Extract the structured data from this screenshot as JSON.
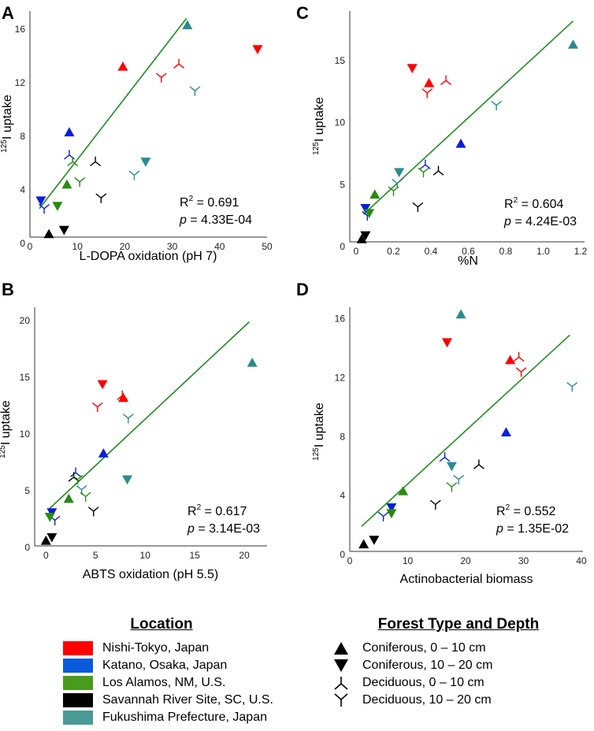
{
  "colors": {
    "nishi": "#ff0000",
    "katano": "#0a1edc",
    "losalamos": "#2a8a10",
    "savannah": "#000000",
    "fukushima": "#2a8c8c",
    "fit": "#1e8c1e"
  },
  "chart_data": [
    {
      "panel": "A",
      "type": "scatter",
      "xlabel": "L-DOPA oxidation (pH 7)",
      "ylabel_sup": "125",
      "ylabel": "I uptake",
      "xlim": [
        0,
        50
      ],
      "ylim": [
        0,
        17
      ],
      "xticks": [
        "0",
        "10",
        "20",
        "30",
        "40",
        "50"
      ],
      "yticks": [
        "0",
        "4",
        "8",
        "12",
        "16"
      ],
      "stats": {
        "r2_label": "R",
        "r2_sup": "2",
        "r2_value": " = 0.691",
        "p_label": "p",
        "p_value": " = 4.33E-04"
      },
      "fit": {
        "x": [
          2,
          33
        ],
        "y": [
          2.6,
          16.8
        ]
      },
      "points": [
        {
          "x": 33.2,
          "y": 16.3,
          "loc": "fukushima",
          "sym": "con0"
        },
        {
          "x": 48.0,
          "y": 14.5,
          "loc": "nishi",
          "sym": "con1"
        },
        {
          "x": 19.6,
          "y": 13.2,
          "loc": "nishi",
          "sym": "con0"
        },
        {
          "x": 31.4,
          "y": 13.4,
          "loc": "nishi",
          "sym": "dec0"
        },
        {
          "x": 27.7,
          "y": 12.4,
          "loc": "nishi",
          "sym": "dec1"
        },
        {
          "x": 34.8,
          "y": 11.4,
          "loc": "fukushima",
          "sym": "dec1"
        },
        {
          "x": 8.3,
          "y": 8.3,
          "loc": "katano",
          "sym": "con0"
        },
        {
          "x": 8.3,
          "y": 6.6,
          "loc": "katano",
          "sym": "dec0"
        },
        {
          "x": 9.0,
          "y": 6.1,
          "loc": "losalamos",
          "sym": "dec0"
        },
        {
          "x": 13.8,
          "y": 6.1,
          "loc": "savannah",
          "sym": "dec0"
        },
        {
          "x": 24.4,
          "y": 6.1,
          "loc": "fukushima",
          "sym": "con1"
        },
        {
          "x": 22.0,
          "y": 5.1,
          "loc": "fukushima",
          "sym": "dec1"
        },
        {
          "x": 10.5,
          "y": 4.6,
          "loc": "losalamos",
          "sym": "dec1"
        },
        {
          "x": 7.8,
          "y": 4.4,
          "loc": "losalamos",
          "sym": "con0"
        },
        {
          "x": 15.0,
          "y": 3.4,
          "loc": "savannah",
          "sym": "dec1"
        },
        {
          "x": 2.3,
          "y": 3.2,
          "loc": "katano",
          "sym": "con1"
        },
        {
          "x": 5.8,
          "y": 2.8,
          "loc": "losalamos",
          "sym": "con1"
        },
        {
          "x": 3.0,
          "y": 2.6,
          "loc": "katano",
          "sym": "dec1"
        },
        {
          "x": 7.2,
          "y": 1.0,
          "loc": "savannah",
          "sym": "con1"
        },
        {
          "x": 4.0,
          "y": 0.7,
          "loc": "savannah",
          "sym": "con0"
        }
      ]
    },
    {
      "panel": "C",
      "type": "scatter",
      "xlabel": "%N",
      "ylabel_sup": "125",
      "ylabel": "I uptake",
      "xlim": [
        0,
        1.2
      ],
      "ylim": [
        0,
        18.5
      ],
      "xticks": [
        "0",
        "0.2",
        "0.4",
        "0.6",
        "0.8",
        "1.0",
        "1.2"
      ],
      "yticks": [
        "0",
        "5",
        "10",
        "15"
      ],
      "stats": {
        "r2_label": "R",
        "r2_sup": "2",
        "r2_value": " = 0.604",
        "p_label": "p",
        "p_value": " = 4.24E-03"
      },
      "fit": {
        "x": [
          0.04,
          1.16
        ],
        "y": [
          2.6,
          18.2
        ]
      },
      "points": [
        {
          "x": 1.16,
          "y": 16.3,
          "loc": "fukushima",
          "sym": "con0"
        },
        {
          "x": 0.3,
          "y": 14.4,
          "loc": "nishi",
          "sym": "con1"
        },
        {
          "x": 0.39,
          "y": 13.2,
          "loc": "nishi",
          "sym": "con0"
        },
        {
          "x": 0.48,
          "y": 13.4,
          "loc": "nishi",
          "sym": "dec0"
        },
        {
          "x": 0.38,
          "y": 12.4,
          "loc": "nishi",
          "sym": "dec1"
        },
        {
          "x": 0.75,
          "y": 11.4,
          "loc": "fukushima",
          "sym": "dec1"
        },
        {
          "x": 0.56,
          "y": 8.3,
          "loc": "katano",
          "sym": "con0"
        },
        {
          "x": 0.37,
          "y": 6.6,
          "loc": "katano",
          "sym": "dec0"
        },
        {
          "x": 0.44,
          "y": 6.1,
          "loc": "savannah",
          "sym": "dec0"
        },
        {
          "x": 0.36,
          "y": 6.0,
          "loc": "losalamos",
          "sym": "dec1"
        },
        {
          "x": 0.23,
          "y": 6.0,
          "loc": "fukushima",
          "sym": "con1"
        },
        {
          "x": 0.22,
          "y": 5.1,
          "loc": "fukushima",
          "sym": "dec1"
        },
        {
          "x": 0.2,
          "y": 4.5,
          "loc": "losalamos",
          "sym": "dec1"
        },
        {
          "x": 0.1,
          "y": 4.2,
          "loc": "losalamos",
          "sym": "con0"
        },
        {
          "x": 0.33,
          "y": 3.2,
          "loc": "savannah",
          "sym": "dec1"
        },
        {
          "x": 0.05,
          "y": 3.1,
          "loc": "katano",
          "sym": "con1"
        },
        {
          "x": 0.06,
          "y": 2.5,
          "loc": "katano",
          "sym": "dec1"
        },
        {
          "x": 0.07,
          "y": 2.7,
          "loc": "losalamos",
          "sym": "con1"
        },
        {
          "x": 0.05,
          "y": 0.9,
          "loc": "savannah",
          "sym": "con1"
        },
        {
          "x": 0.03,
          "y": 0.6,
          "loc": "savannah",
          "sym": "con0"
        }
      ]
    },
    {
      "panel": "B",
      "type": "scatter",
      "xlabel": "ABTS oxidation (pH 5.5)",
      "ylabel_sup": "125",
      "ylabel": "I uptake",
      "xlim": [
        -0.5,
        21.5
      ],
      "ylim": [
        0,
        20.5
      ],
      "xticks": [
        "0",
        "5",
        "10",
        "15",
        "20"
      ],
      "yticks": [
        "0",
        "5",
        "10",
        "15",
        "20"
      ],
      "stats": {
        "r2_label": "R",
        "r2_sup": "2",
        "r2_value": " = 0.617",
        "p_label": "p",
        "p_value": " = 3.14E-03"
      },
      "fit": {
        "x": [
          0.2,
          20.5
        ],
        "y": [
          3.3,
          19.9
        ]
      },
      "points": [
        {
          "x": 20.8,
          "y": 16.3,
          "loc": "fukushima",
          "sym": "con0"
        },
        {
          "x": 5.7,
          "y": 14.4,
          "loc": "nishi",
          "sym": "con1"
        },
        {
          "x": 7.8,
          "y": 13.2,
          "loc": "nishi",
          "sym": "con0"
        },
        {
          "x": 7.7,
          "y": 13.4,
          "loc": "nishi",
          "sym": "dec0"
        },
        {
          "x": 5.2,
          "y": 12.4,
          "loc": "nishi",
          "sym": "dec1"
        },
        {
          "x": 8.3,
          "y": 11.4,
          "loc": "fukushima",
          "sym": "dec1"
        },
        {
          "x": 5.8,
          "y": 8.3,
          "loc": "katano",
          "sym": "con0"
        },
        {
          "x": 3.0,
          "y": 6.6,
          "loc": "katano",
          "sym": "dec0"
        },
        {
          "x": 2.8,
          "y": 6.2,
          "loc": "savannah",
          "sym": "dec0"
        },
        {
          "x": 3.2,
          "y": 6.0,
          "loc": "losalamos",
          "sym": "dec1"
        },
        {
          "x": 8.2,
          "y": 6.0,
          "loc": "fukushima",
          "sym": "con1"
        },
        {
          "x": 3.6,
          "y": 5.1,
          "loc": "fukushima",
          "sym": "dec1"
        },
        {
          "x": 4.0,
          "y": 4.5,
          "loc": "losalamos",
          "sym": "dec1"
        },
        {
          "x": 2.3,
          "y": 4.3,
          "loc": "losalamos",
          "sym": "con0"
        },
        {
          "x": 4.8,
          "y": 3.2,
          "loc": "savannah",
          "sym": "dec1"
        },
        {
          "x": 0.6,
          "y": 3.1,
          "loc": "katano",
          "sym": "con1"
        },
        {
          "x": 0.9,
          "y": 2.4,
          "loc": "katano",
          "sym": "dec1"
        },
        {
          "x": 0.4,
          "y": 2.7,
          "loc": "losalamos",
          "sym": "con1"
        },
        {
          "x": 0.6,
          "y": 0.9,
          "loc": "savannah",
          "sym": "con1"
        },
        {
          "x": 0.0,
          "y": 0.6,
          "loc": "savannah",
          "sym": "con0"
        }
      ]
    },
    {
      "panel": "D",
      "type": "scatter",
      "xlabel": "Actinobacterial biomass",
      "ylabel_sup": "125",
      "ylabel": "I uptake",
      "xlim": [
        0,
        40
      ],
      "ylim": [
        0,
        17
      ],
      "xticks": [
        "0",
        "10",
        "20",
        "30",
        "40"
      ],
      "yticks": [
        "0",
        "4",
        "8",
        "12",
        "16"
      ],
      "stats": {
        "r2_label": "R",
        "r2_sup": "2",
        "r2_value": " = 0.552",
        "p_label": "p",
        "p_value": " = 1.35E-02"
      },
      "fit": {
        "x": [
          2,
          38
        ],
        "y": [
          1.9,
          14.9
        ]
      },
      "points": [
        {
          "x": 19.2,
          "y": 16.3,
          "loc": "fukushima",
          "sym": "con0"
        },
        {
          "x": 16.8,
          "y": 14.4,
          "loc": "nishi",
          "sym": "con1"
        },
        {
          "x": 27.7,
          "y": 13.2,
          "loc": "nishi",
          "sym": "con0"
        },
        {
          "x": 29.2,
          "y": 13.4,
          "loc": "nishi",
          "sym": "dec0"
        },
        {
          "x": 29.6,
          "y": 12.4,
          "loc": "nishi",
          "sym": "dec1"
        },
        {
          "x": 38.4,
          "y": 11.4,
          "loc": "fukushima",
          "sym": "dec1"
        },
        {
          "x": 27.0,
          "y": 8.3,
          "loc": "katano",
          "sym": "con0"
        },
        {
          "x": 16.4,
          "y": 6.6,
          "loc": "katano",
          "sym": "dec0"
        },
        {
          "x": 22.3,
          "y": 6.1,
          "loc": "savannah",
          "sym": "dec0"
        },
        {
          "x": 17.6,
          "y": 6.0,
          "loc": "fukushima",
          "sym": "con1"
        },
        {
          "x": 18.8,
          "y": 5.1,
          "loc": "fukushima",
          "sym": "dec1"
        },
        {
          "x": 17.6,
          "y": 4.6,
          "loc": "losalamos",
          "sym": "dec1"
        },
        {
          "x": 9.2,
          "y": 4.3,
          "loc": "losalamos",
          "sym": "con0"
        },
        {
          "x": 14.8,
          "y": 3.4,
          "loc": "savannah",
          "sym": "dec1"
        },
        {
          "x": 7.2,
          "y": 3.2,
          "loc": "katano",
          "sym": "con1"
        },
        {
          "x": 7.2,
          "y": 2.8,
          "loc": "losalamos",
          "sym": "con1"
        },
        {
          "x": 5.8,
          "y": 2.6,
          "loc": "katano",
          "sym": "dec1"
        },
        {
          "x": 4.2,
          "y": 1.0,
          "loc": "savannah",
          "sym": "con1"
        },
        {
          "x": 2.4,
          "y": 0.7,
          "loc": "savannah",
          "sym": "con0"
        }
      ]
    }
  ],
  "legend": {
    "location_title": "Location",
    "locations": [
      {
        "key": "nishi",
        "label": "Nishi-Tokyo, Japan"
      },
      {
        "key": "katano",
        "label": "Katano, Osaka, Japan"
      },
      {
        "key": "losalamos",
        "label": "Los Alamos, NM, U.S."
      },
      {
        "key": "savannah",
        "label": "Savannah River Site, SC, U.S."
      },
      {
        "key": "fukushima",
        "label": "Fukushima Prefecture, Japan"
      }
    ],
    "forest_title": "Forest Type and Depth",
    "forest": [
      {
        "sym": "con0",
        "label": "Coniferous, 0 – 10 cm"
      },
      {
        "sym": "con1",
        "label": "Coniferous, 10 – 20 cm"
      },
      {
        "sym": "dec0",
        "label": "Deciduous, 0 – 10 cm"
      },
      {
        "sym": "dec1",
        "label": "Deciduous, 10 – 20 cm"
      }
    ]
  }
}
